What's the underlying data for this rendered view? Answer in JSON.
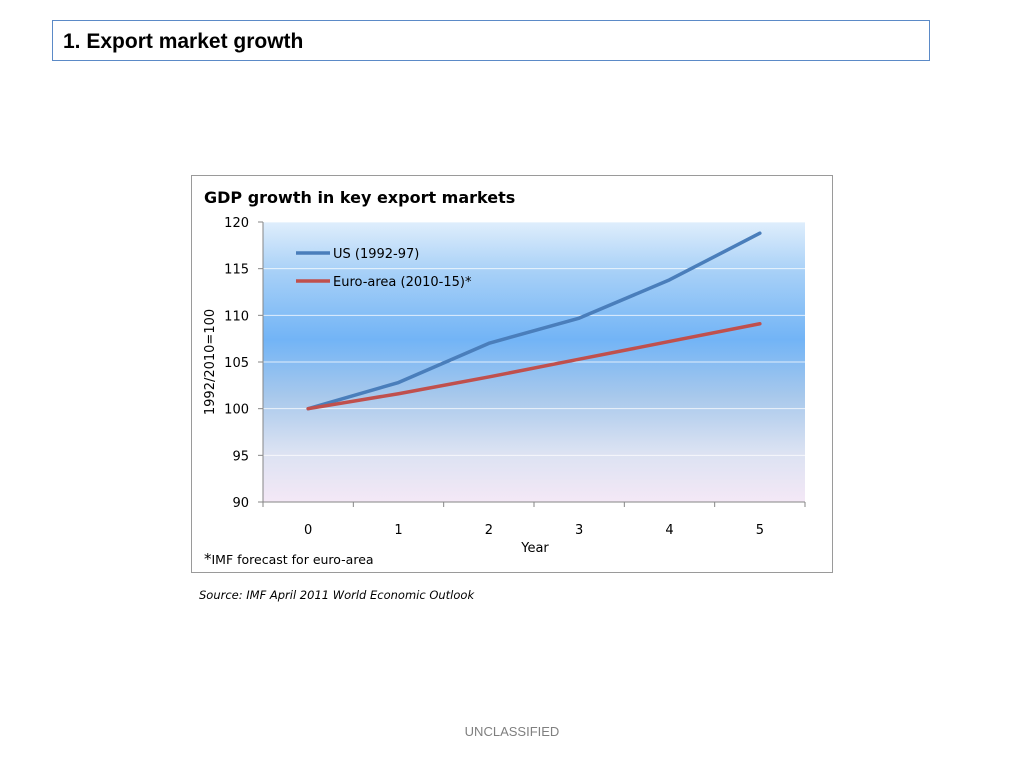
{
  "slide": {
    "title": "1. Export market growth",
    "source": "Source: IMF April 2011 World Economic Outlook",
    "footer": "UNCLASSIFIED"
  },
  "chart_data": {
    "type": "line",
    "title": "GDP growth in key export markets",
    "xlabel": "Year",
    "ylabel": "1992/2010=100",
    "x": [
      0,
      1,
      2,
      3,
      4,
      5
    ],
    "ylim": [
      90,
      120
    ],
    "yticks": [
      90,
      95,
      100,
      105,
      110,
      115,
      120
    ],
    "grid": true,
    "legend_position": "top-left",
    "series": [
      {
        "name": "US (1992-97)",
        "color": "#4a7ebb",
        "values": [
          100,
          102.8,
          107.0,
          109.7,
          113.8,
          118.8
        ]
      },
      {
        "name": "Euro-area (2010-15)*",
        "color": "#c0504d",
        "values": [
          100,
          101.6,
          103.4,
          105.3,
          107.2,
          109.1
        ]
      }
    ],
    "footnote_mark": "*",
    "footnote_text": "IMF forecast for euro-area"
  }
}
